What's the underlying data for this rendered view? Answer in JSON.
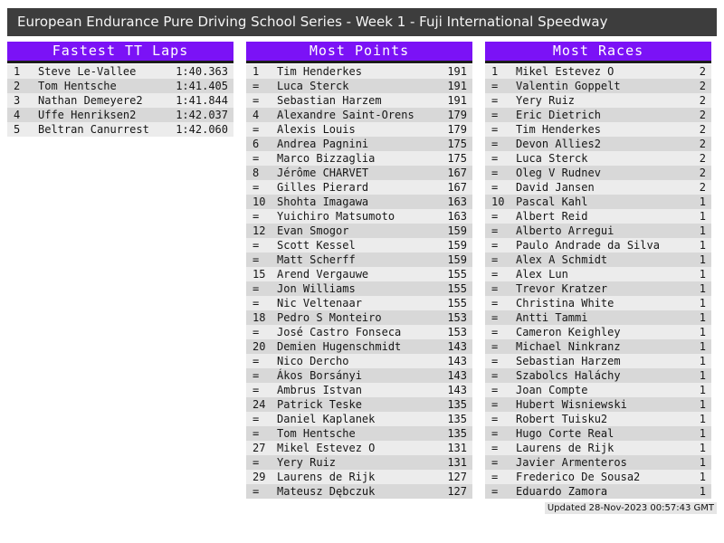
{
  "title": "European Endurance Pure Driving School Series - Week 1 - Fuji International Speedway",
  "footer": {
    "updated": "Updated 28-Nov-2023 00:57:43 GMT"
  },
  "colors": {
    "accent_purple": "#7b12f6",
    "title_bar": "#3d3d3d",
    "row_odd": "#ececec",
    "row_even": "#d8d8d8"
  },
  "tables": [
    {
      "title": "Fastest TT Laps",
      "rows": [
        [
          "1",
          "Steve Le-Vallee",
          "1:40.363"
        ],
        [
          "2",
          "Tom Hentsche",
          "1:41.405"
        ],
        [
          "3",
          "Nathan Demeyere2",
          "1:41.844"
        ],
        [
          "4",
          "Uffe Henriksen2",
          "1:42.037"
        ],
        [
          "5",
          "Beltran Canurrest",
          "1:42.060"
        ]
      ]
    },
    {
      "title": "Most Points",
      "rows": [
        [
          "1",
          "Tim Henderkes",
          "191"
        ],
        [
          "=",
          "Luca Sterck",
          "191"
        ],
        [
          "=",
          "Sebastian Harzem",
          "191"
        ],
        [
          "4",
          "Alexandre Saint-Orens",
          "179"
        ],
        [
          "=",
          "Alexis Louis",
          "179"
        ],
        [
          "6",
          "Andrea Pagnini",
          "175"
        ],
        [
          "=",
          "Marco Bizzaglia",
          "175"
        ],
        [
          "8",
          "Jérôme CHARVET",
          "167"
        ],
        [
          "=",
          "Gilles Pierard",
          "167"
        ],
        [
          "10",
          "Shohta Imagawa",
          "163"
        ],
        [
          "=",
          "Yuichiro Matsumoto",
          "163"
        ],
        [
          "12",
          "Evan Smogor",
          "159"
        ],
        [
          "=",
          "Scott Kessel",
          "159"
        ],
        [
          "=",
          "Matt Scherff",
          "159"
        ],
        [
          "15",
          "Arend Vergauwe",
          "155"
        ],
        [
          "=",
          "Jon Williams",
          "155"
        ],
        [
          "=",
          "Nic Veltenaar",
          "155"
        ],
        [
          "18",
          "Pedro S Monteiro",
          "153"
        ],
        [
          "=",
          "José Castro Fonseca",
          "153"
        ],
        [
          "20",
          "Demien Hugenschmidt",
          "143"
        ],
        [
          "=",
          "Nico Dercho",
          "143"
        ],
        [
          "=",
          "Ákos Borsányi",
          "143"
        ],
        [
          "=",
          "Ambrus Istvan",
          "143"
        ],
        [
          "24",
          "Patrick Teske",
          "135"
        ],
        [
          "=",
          "Daniel Kaplanek",
          "135"
        ],
        [
          "=",
          "Tom Hentsche",
          "135"
        ],
        [
          "27",
          "Mikel Estevez O",
          "131"
        ],
        [
          "=",
          "Yery Ruiz",
          "131"
        ],
        [
          "29",
          "Laurens de Rijk",
          "127"
        ],
        [
          "=",
          "Mateusz Dębczuk",
          "127"
        ]
      ]
    },
    {
      "title": "Most Races",
      "rows": [
        [
          "1",
          "Mikel Estevez O",
          "2"
        ],
        [
          "=",
          "Valentin Goppelt",
          "2"
        ],
        [
          "=",
          "Yery Ruiz",
          "2"
        ],
        [
          "=",
          "Eric Dietrich",
          "2"
        ],
        [
          "=",
          "Tim Henderkes",
          "2"
        ],
        [
          "=",
          "Devon Allies2",
          "2"
        ],
        [
          "=",
          "Luca Sterck",
          "2"
        ],
        [
          "=",
          "Oleg V Rudnev",
          "2"
        ],
        [
          "=",
          "David Jansen",
          "2"
        ],
        [
          "10",
          "Pascal Kahl",
          "1"
        ],
        [
          "=",
          "Albert Reid",
          "1"
        ],
        [
          "=",
          "Alberto Arregui",
          "1"
        ],
        [
          "=",
          "Paulo Andrade da Silva",
          "1"
        ],
        [
          "=",
          "Alex A Schmidt",
          "1"
        ],
        [
          "=",
          "Alex Lun",
          "1"
        ],
        [
          "=",
          "Trevor Kratzer",
          "1"
        ],
        [
          "=",
          "Christina White",
          "1"
        ],
        [
          "=",
          "Antti Tammi",
          "1"
        ],
        [
          "=",
          "Cameron Keighley",
          "1"
        ],
        [
          "=",
          "Michael Ninkranz",
          "1"
        ],
        [
          "=",
          "Sebastian Harzem",
          "1"
        ],
        [
          "=",
          "Szabolcs Haláchy",
          "1"
        ],
        [
          "=",
          "Joan Compte",
          "1"
        ],
        [
          "=",
          "Hubert Wisniewski",
          "1"
        ],
        [
          "=",
          "Robert Tuisku2",
          "1"
        ],
        [
          "=",
          "Hugo Corte Real",
          "1"
        ],
        [
          "=",
          "Laurens de Rijk",
          "1"
        ],
        [
          "=",
          "Javier Armenteros",
          "1"
        ],
        [
          "=",
          "Frederico De Sousa2",
          "1"
        ],
        [
          "=",
          "Eduardo Zamora",
          "1"
        ]
      ]
    }
  ]
}
